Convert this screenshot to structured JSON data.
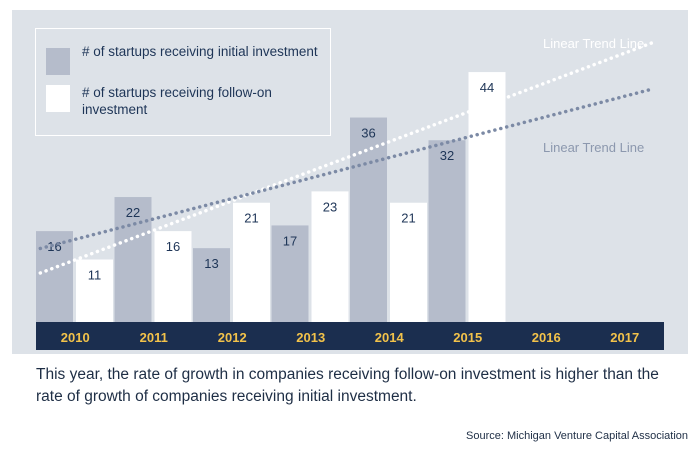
{
  "colors": {
    "background": "#dde2e8",
    "initial_bar": "#b5bccb",
    "followon_bar": "#ffffff",
    "axis_band": "#1b2e4f",
    "axis_text": "#f2c24a",
    "value_text": "#1e3557",
    "trend_initial": "#7c8aa5",
    "trend_followon": "#ffffff"
  },
  "legend": {
    "initial_label": "# of startups receiving initial investment",
    "followon_label": "# of startups receiving follow-on investment"
  },
  "trend_labels": {
    "followon": "Linear Trend Line",
    "initial": "Linear Trend Line"
  },
  "caption": "This year, the rate of growth in companies receiving follow-on investment is higher than the rate of growth of companies receiving initial investment.",
  "source": "Source: Michigan Venture Capital Association",
  "chart_data": {
    "type": "bar",
    "categories": [
      "2010",
      "2011",
      "2012",
      "2013",
      "2014",
      "2015",
      "2016",
      "2017"
    ],
    "series": [
      {
        "name": "# of startups receiving initial investment",
        "values": [
          16,
          22,
          13,
          17,
          36,
          32,
          null,
          null
        ],
        "color": "#b5bccb"
      },
      {
        "name": "# of startups receiving follow-on investment",
        "values": [
          11,
          16,
          21,
          23,
          21,
          44,
          null,
          null
        ],
        "color": "#ffffff"
      }
    ],
    "trend_lines": [
      {
        "series": "# of startups receiving follow-on investment",
        "label": "Linear Trend Line",
        "style": "dotted"
      },
      {
        "series": "# of startups receiving initial investment",
        "label": "Linear Trend Line",
        "style": "dotted"
      }
    ],
    "ylim": [
      0,
      48
    ],
    "xlabel": "",
    "ylabel": "",
    "grid": false,
    "legend_position": "top-left"
  }
}
